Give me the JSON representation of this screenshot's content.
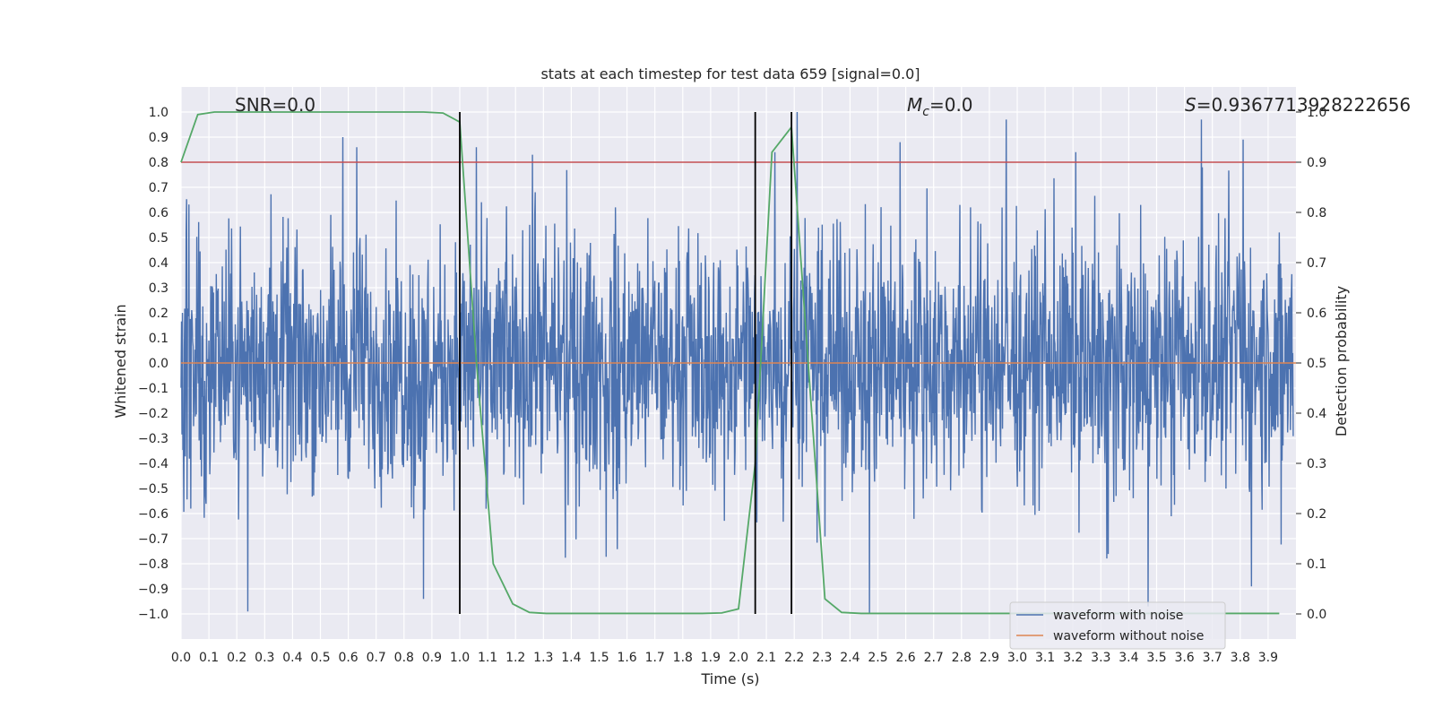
{
  "chart_data": {
    "type": "line",
    "title": "stats at each timestep for test data 659 [signal=0.0]",
    "xlabel": "Time (s)",
    "ylabel_left": "Whitened strain",
    "ylabel_right": "Detection probability",
    "xlim": [
      0.0,
      4.0
    ],
    "ylim_left": [
      -1.1,
      1.1
    ],
    "ylim_right": [
      -0.05,
      1.05
    ],
    "x_ticks": [
      0.0,
      0.1,
      0.2,
      0.3,
      0.4,
      0.5,
      0.6,
      0.7,
      0.8,
      0.9,
      1.0,
      1.1,
      1.2,
      1.3,
      1.4,
      1.5,
      1.6,
      1.7,
      1.8,
      1.9,
      2.0,
      2.1,
      2.2,
      2.3,
      2.4,
      2.5,
      2.6,
      2.7,
      2.8,
      2.9,
      3.0,
      3.1,
      3.2,
      3.3,
      3.4,
      3.5,
      3.6,
      3.7,
      3.8,
      3.9
    ],
    "x_tick_labels": [
      "0.0",
      "0.1",
      "0.2",
      "0.3",
      "0.4",
      "0.5",
      "0.6",
      "0.7",
      "0.8",
      "0.9",
      "1.0",
      "1.1",
      "1.2",
      "1.3",
      "1.4",
      "1.5",
      "1.6",
      "1.7",
      "1.8",
      "1.9",
      "2.0",
      "2.1",
      "2.2",
      "2.3",
      "2.4",
      "2.5",
      "2.6",
      "2.7",
      "2.8",
      "2.9",
      "3.0",
      "3.1",
      "3.2",
      "3.3",
      "3.4",
      "3.5",
      "3.6",
      "3.7",
      "3.8",
      "3.9"
    ],
    "y_left_ticks": [
      1.0,
      0.9,
      0.8,
      0.7,
      0.6,
      0.5,
      0.4,
      0.3,
      0.2,
      0.1,
      0.0,
      -0.1,
      -0.2,
      -0.3,
      -0.4,
      -0.5,
      -0.6,
      -0.7,
      -0.8,
      -0.9,
      -1.0
    ],
    "y_left_tick_labels": [
      "1.0",
      "0.9",
      "0.8",
      "0.7",
      "0.6",
      "0.5",
      "0.4",
      "0.3",
      "0.2",
      "0.1",
      "0.0",
      "−0.1",
      "−0.2",
      "−0.3",
      "−0.4",
      "−0.5",
      "−0.6",
      "−0.7",
      "−0.8",
      "−0.9",
      "−1.0"
    ],
    "y_right_ticks": [
      1.0,
      0.9,
      0.8,
      0.7,
      0.6,
      0.5,
      0.4,
      0.3,
      0.2,
      0.1,
      0.0
    ],
    "y_right_tick_labels": [
      "1.0",
      "0.9",
      "0.8",
      "0.7",
      "0.6",
      "0.5",
      "0.4",
      "0.3",
      "0.2",
      "0.1",
      "0.0"
    ],
    "annotations": {
      "snr": "SNR=0.0",
      "mc_symbol": "M",
      "mc_subscript": "c",
      "mc_value": "=0.0",
      "s_symbol": "S",
      "s_value": "=0.9367713928222656"
    },
    "legend": {
      "placement": "lower-right",
      "entries": [
        "waveform with noise",
        "waveform without noise"
      ]
    },
    "series": [
      {
        "name": "waveform with noise",
        "axis": "left",
        "color": "#4c72b0",
        "kind": "noise",
        "x_range": [
          0.0,
          3.99
        ],
        "approx_abs_max": 1.0,
        "peaks": [
          {
            "x": 0.58,
            "y": 0.9
          },
          {
            "x": 0.63,
            "y": 0.86
          },
          {
            "x": 1.06,
            "y": 0.86
          },
          {
            "x": 1.26,
            "y": 0.83
          },
          {
            "x": 2.13,
            "y": 0.84
          },
          {
            "x": 2.21,
            "y": 1.0
          },
          {
            "x": 2.58,
            "y": 0.88
          },
          {
            "x": 2.96,
            "y": 0.97
          },
          {
            "x": 3.21,
            "y": 0.84
          },
          {
            "x": 3.66,
            "y": 0.97
          },
          {
            "x": 3.81,
            "y": 0.89
          },
          {
            "x": 0.24,
            "y": -0.99
          },
          {
            "x": 0.87,
            "y": -0.94
          },
          {
            "x": 2.47,
            "y": -1.0
          },
          {
            "x": 3.47,
            "y": -0.97
          },
          {
            "x": 3.84,
            "y": -0.89
          }
        ]
      },
      {
        "name": "waveform without noise",
        "axis": "left",
        "color": "#dd8452",
        "x": [
          0.0,
          4.0
        ],
        "y": [
          0.0,
          0.0
        ]
      },
      {
        "name": "",
        "axis": "right",
        "color": "#55a868",
        "x": [
          0.0,
          0.06,
          0.12,
          0.19,
          0.25,
          0.31,
          0.37,
          0.44,
          0.5,
          0.56,
          0.62,
          0.69,
          0.75,
          0.81,
          0.87,
          0.94,
          1.0,
          1.06,
          1.12,
          1.19,
          1.25,
          1.31,
          1.37,
          1.44,
          1.5,
          1.56,
          1.62,
          1.69,
          1.75,
          1.81,
          1.87,
          1.94,
          2.0,
          2.06,
          2.12,
          2.19,
          2.25,
          2.31,
          2.37,
          2.44,
          2.5,
          2.56,
          2.62,
          2.69,
          2.75,
          2.81,
          2.87,
          2.94,
          3.0,
          3.06,
          3.12,
          3.19,
          3.25,
          3.31,
          3.37,
          3.44,
          3.5,
          3.56,
          3.62,
          3.69,
          3.75,
          3.81,
          3.87,
          3.94
        ],
        "y": [
          0.9,
          0.995,
          1.0,
          1.0,
          1.0,
          1.0,
          1.0,
          1.0,
          1.0,
          1.0,
          1.0,
          1.0,
          1.0,
          1.0,
          1.0,
          0.998,
          0.98,
          0.5,
          0.1,
          0.02,
          0.003,
          0.001,
          0.001,
          0.001,
          0.001,
          0.001,
          0.001,
          0.001,
          0.001,
          0.001,
          0.001,
          0.002,
          0.01,
          0.3,
          0.92,
          0.97,
          0.5,
          0.03,
          0.003,
          0.001,
          0.001,
          0.001,
          0.001,
          0.001,
          0.001,
          0.001,
          0.001,
          0.001,
          0.001,
          0.001,
          0.001,
          0.001,
          0.001,
          0.001,
          0.001,
          0.001,
          0.001,
          0.001,
          0.001,
          0.001,
          0.001,
          0.001,
          0.001,
          0.001
        ]
      }
    ],
    "hlines": [
      {
        "axis": "right",
        "y": 0.9,
        "color": "#c44e52"
      }
    ],
    "vlines": [
      {
        "x": 1.0,
        "y_range": [
          -1.0,
          1.0
        ],
        "color": "#000000"
      },
      {
        "x": 2.06,
        "y_range": [
          -1.0,
          1.0
        ],
        "color": "#000000"
      },
      {
        "x": 2.19,
        "y_range": [
          -1.0,
          1.0
        ],
        "color": "#000000"
      }
    ],
    "grid": true
  }
}
